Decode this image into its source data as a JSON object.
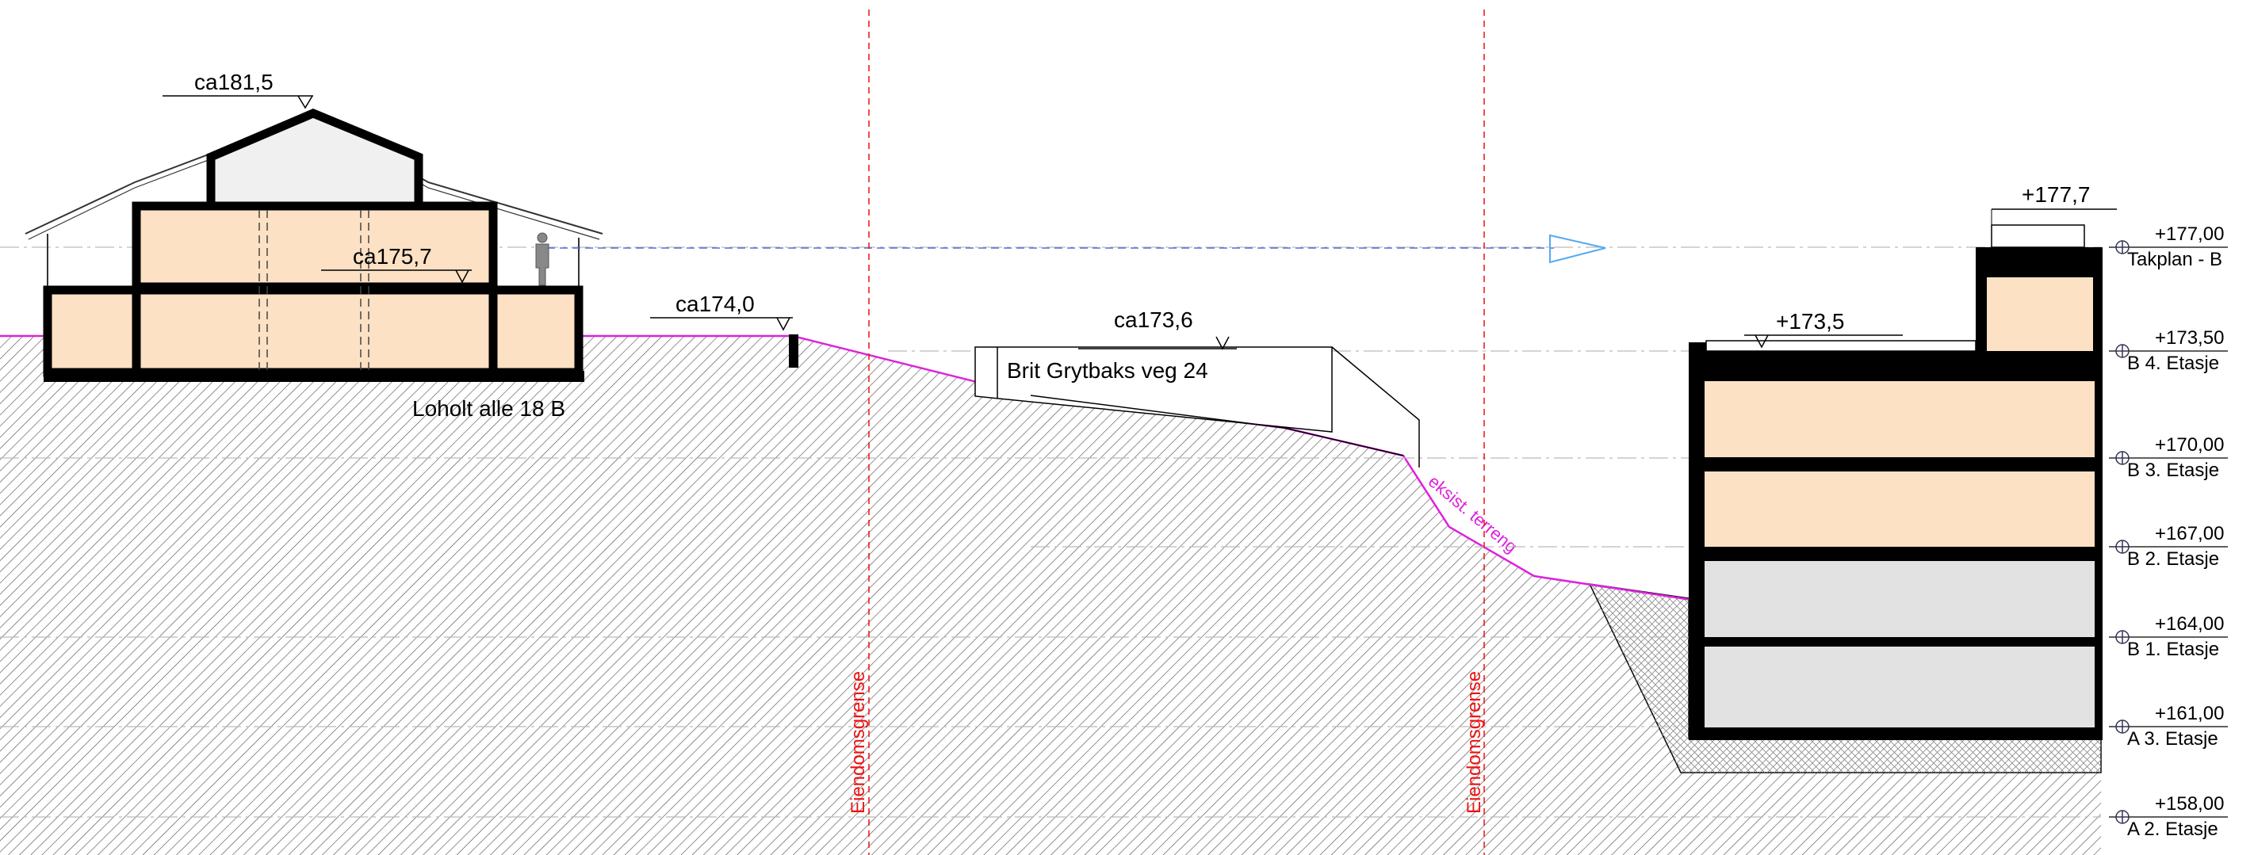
{
  "title": "",
  "buildings": {
    "left": {
      "name": "Loholt alle 18 B",
      "ridge_level": "ca181,5",
      "floor_level": "ca175,7"
    },
    "middle": {
      "name": "Brit Grytbaks veg 24",
      "level": "ca173,6"
    },
    "wall_level": "ca174,0",
    "right": {
      "roof_box_level": "+177,7",
      "terrace_level": "+173,5"
    }
  },
  "terrain_label": "eksist. terreng",
  "property_line_label": "Eiendomsgrense",
  "levels": [
    {
      "value": "+177,00",
      "name": "Takplan - B"
    },
    {
      "value": "+173,50",
      "name": "B 4. Etasje"
    },
    {
      "value": "+170,00",
      "name": "B 3. Etasje"
    },
    {
      "value": "+167,00",
      "name": "B 2. Etasje"
    },
    {
      "value": "+164,00",
      "name": "B 1. Etasje"
    },
    {
      "value": "+161,00",
      "name": "A 3. Etasje"
    },
    {
      "value": "+158,00",
      "name": "A 2. Etasje"
    }
  ],
  "colors": {
    "line": "#000000",
    "hatch": "#555555",
    "warm_fill": "#fde1c5",
    "grey_fill": "#e2e2e2",
    "terrain": "#dd22dd",
    "property_line": "#ee1111",
    "sightline": "#5b6bd6",
    "arrow": "#55aaee",
    "level_line": "#aaaaaa"
  }
}
